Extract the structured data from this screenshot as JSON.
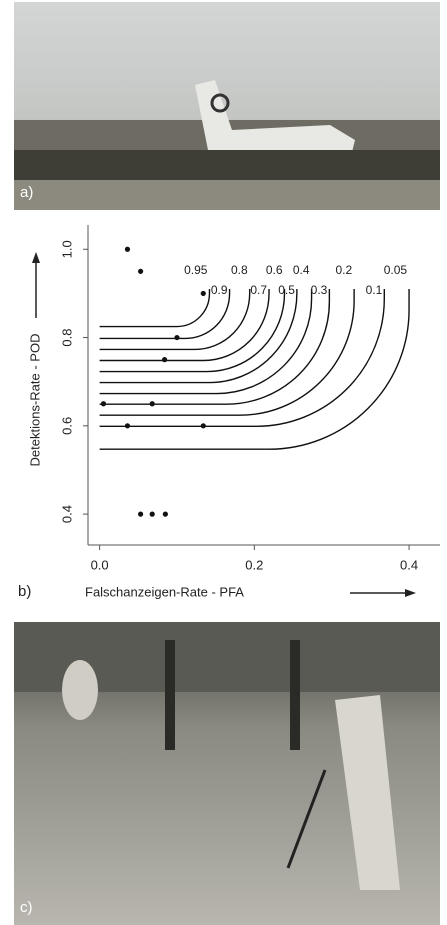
{
  "panels": {
    "a_label": "a)",
    "c_label": "c)"
  },
  "chart_data": {
    "type": "scatter",
    "panel_label": "b)",
    "xlabel": "Falschanzeigen-Rate - PFA",
    "ylabel": "Detektions-Rate - POD",
    "x": [
      0.036,
      0.053,
      0.134,
      0.1,
      0.084,
      0.005,
      0.068,
      0.036,
      0.134,
      0.053,
      0.068,
      0.085
    ],
    "values": [
      1.0,
      0.95,
      0.9,
      0.8,
      0.75,
      0.65,
      0.65,
      0.6,
      0.6,
      0.4,
      0.4,
      0.4
    ],
    "color": "#111111",
    "xlim": [
      -0.015,
      0.44
    ],
    "ylim": [
      0.33,
      1.055
    ],
    "xticks": [
      {
        "value": 0,
        "label": "0.0"
      },
      0.2,
      0.4
    ],
    "yticks": [
      0.4,
      0.6,
      0.8,
      {
        "value": 1,
        "label": "1.0"
      }
    ],
    "curves": [
      {
        "label": "0.95",
        "x": [
          0,
          0.1,
          0.142,
          0.142
        ],
        "y": [
          0.825,
          0.825,
          0.9,
          0.91
        ]
      },
      {
        "label": "0.9",
        "x": [
          0,
          0.111,
          0.168,
          0.168
        ],
        "y": [
          0.798,
          0.798,
          0.9,
          0.91
        ]
      },
      {
        "label": "0.8",
        "x": [
          0,
          0.123,
          0.194,
          0.194
        ],
        "y": [
          0.773,
          0.773,
          0.9,
          0.91
        ]
      },
      {
        "label": "0.7",
        "x": [
          0,
          0.134,
          0.219,
          0.219
        ],
        "y": [
          0.748,
          0.748,
          0.9,
          0.91
        ]
      },
      {
        "label": "0.6",
        "x": [
          0,
          0.139,
          0.239,
          0.239
        ],
        "y": [
          0.723,
          0.723,
          0.9,
          0.91
        ]
      },
      {
        "label": "0.5",
        "x": [
          0,
          0.142,
          0.255,
          0.255
        ],
        "y": [
          0.698,
          0.698,
          0.9,
          0.91
        ]
      },
      {
        "label": "0.4",
        "x": [
          0,
          0.151,
          0.274,
          0.274
        ],
        "y": [
          0.673,
          0.673,
          0.888,
          0.91
        ]
      },
      {
        "label": "0.3",
        "x": [
          0,
          0.164,
          0.297,
          0.297
        ],
        "y": [
          0.649,
          0.649,
          0.881,
          0.91
        ]
      },
      {
        "label": "0.2",
        "x": [
          0,
          0.181,
          0.329,
          0.329
        ],
        "y": [
          0.624,
          0.624,
          0.884,
          0.91
        ]
      },
      {
        "label": "0.1",
        "x": [
          0,
          0.203,
          0.368,
          0.368
        ],
        "y": [
          0.599,
          0.599,
          0.888,
          0.91
        ]
      },
      {
        "label": "0.05",
        "x": [
          0,
          0.219,
          0.4,
          0.4
        ],
        "y": [
          0.547,
          0.547,
          0.863,
          0.91
        ]
      }
    ]
  }
}
